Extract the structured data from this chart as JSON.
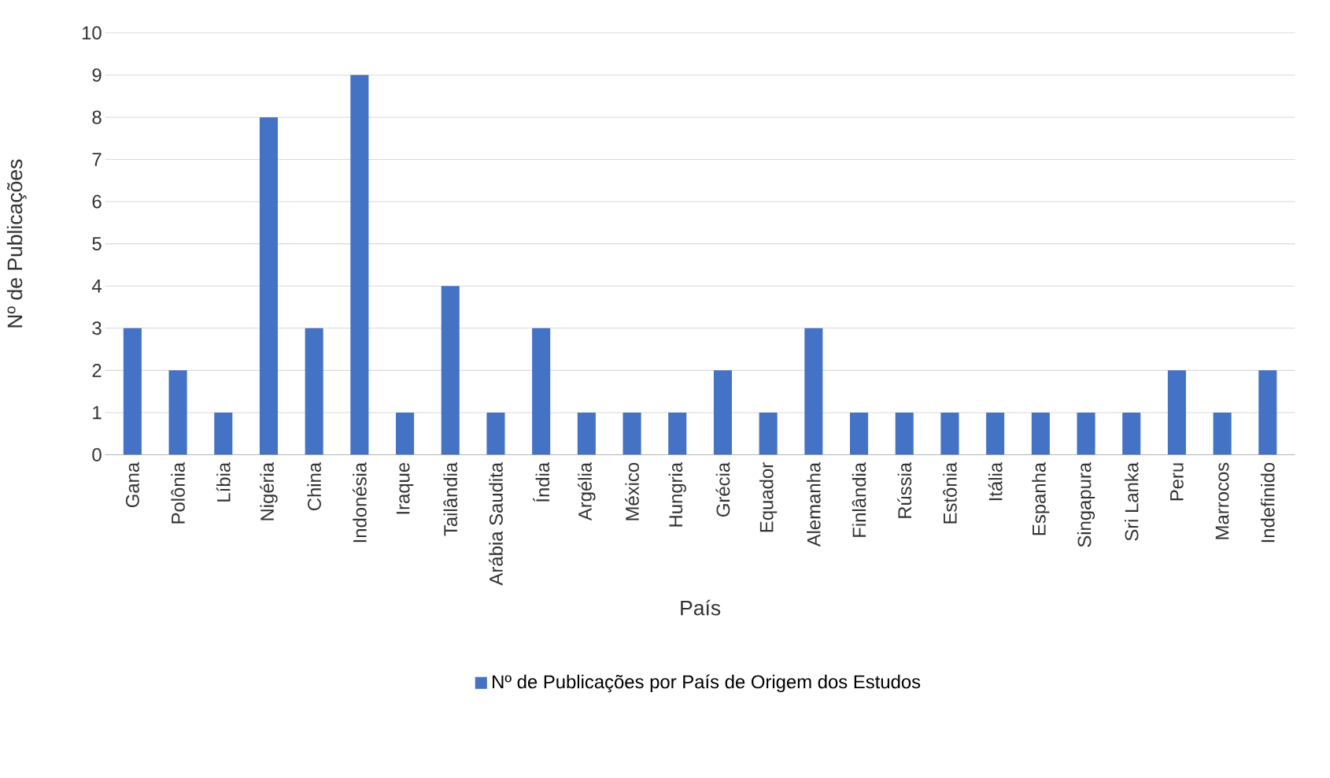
{
  "chart_data": {
    "type": "bar",
    "xlabel": "País",
    "ylabel": "Nº de Publicações",
    "categories": [
      "Gana",
      "Polônia",
      "Líbia",
      "Nigéria",
      "China",
      "Indonésia",
      "Iraque",
      "Tailândia",
      "Arábia Saudita",
      "Índia",
      "Argélia",
      "México",
      "Hungria",
      "Grécia",
      "Equador",
      "Alemanha",
      "Finlândia",
      "Rússia",
      "Estônia",
      "Itália",
      "Espanha",
      "Singapura",
      "Sri Lanka",
      "Peru",
      "Marrocos",
      "Indefinido"
    ],
    "series": [
      {
        "name": "Nº de Publicações por País de Origem dos Estudos",
        "color": "#4472c4",
        "values": [
          3,
          2,
          1,
          8,
          3,
          9,
          1,
          4,
          1,
          3,
          1,
          1,
          1,
          2,
          1,
          3,
          1,
          1,
          1,
          1,
          1,
          1,
          1,
          2,
          1,
          2
        ]
      }
    ],
    "ylim": [
      0,
      10
    ],
    "yticks": [
      0,
      1,
      2,
      3,
      4,
      5,
      6,
      7,
      8,
      9,
      10
    ],
    "grid": "y",
    "legend": "bottom"
  }
}
